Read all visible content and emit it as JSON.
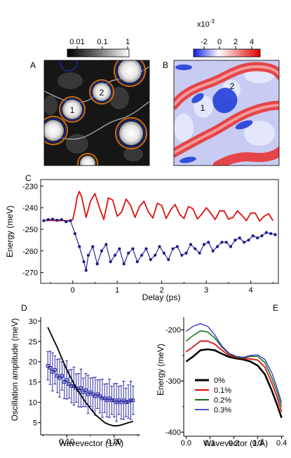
{
  "panels": {
    "A": {
      "letter": "A",
      "colorbar_ticks": [
        "0.01",
        "0.1",
        "1"
      ],
      "site_labels": [
        "1",
        "2"
      ]
    },
    "B": {
      "letter": "B",
      "colorbar_exponent": "x10",
      "colorbar_exponent_power": "-3",
      "colorbar_ticks": [
        "-2",
        "0",
        "2",
        "4"
      ],
      "site_labels": [
        "1",
        "2"
      ],
      "colors": {
        "negative": "#2030d0",
        "zero": "#ffffff",
        "positive": "#e01818"
      }
    },
    "C": {
      "letter": "C",
      "xlabel": "Delay (ps)",
      "ylabel": "Energy (meV)",
      "xticks": [
        "0",
        "1",
        "2",
        "3",
        "4"
      ],
      "yticks": [
        "-230",
        "-240",
        "-250",
        "-260",
        "-270"
      ]
    },
    "D": {
      "letter": "D",
      "xlabel": "Wavevector (1/Å)",
      "ylabel": "Oscillation amplitude (meV)",
      "xticks": [
        "0.10",
        "0.20"
      ],
      "yticks": [
        "30",
        "25",
        "20",
        "15",
        "10",
        "5"
      ]
    },
    "E": {
      "letter": "E",
      "xlabel": "Wavevector (1/Å)",
      "ylabel": "Energy (meV)",
      "xticks": [
        "0.0",
        "0.1",
        "0.2",
        "0.3",
        "0.4"
      ],
      "yticks": [
        "-200",
        "-300",
        "-400"
      ],
      "legend": [
        "0%",
        "0.1%",
        "0.2%",
        "0.3%"
      ]
    }
  },
  "chart_data": [
    {
      "panel": "C",
      "type": "line",
      "xlabel": "Delay (ps)",
      "ylabel": "Energy (meV)",
      "xlim": [
        -0.72,
        4.62
      ],
      "ylim": [
        -275,
        -227
      ],
      "series": [
        {
          "color": "#e01010",
          "x": [
            -0.6,
            -0.5,
            -0.4,
            -0.3,
            -0.2,
            -0.1,
            0.0,
            0.05,
            0.1,
            0.15,
            0.2,
            0.3,
            0.4,
            0.5,
            0.6,
            0.7,
            0.8,
            0.9,
            1.0,
            1.1,
            1.2,
            1.3,
            1.4,
            1.5,
            1.6,
            1.7,
            1.8,
            1.9,
            2.0,
            2.1,
            2.2,
            2.3,
            2.4,
            2.5,
            2.6,
            2.7,
            2.8,
            2.9,
            3.0,
            3.1,
            3.2,
            3.3,
            3.4,
            3.5,
            3.6,
            3.7,
            3.8,
            3.9,
            4.0,
            4.1,
            4.2,
            4.3,
            4.4,
            4.5
          ],
          "y": [
            -246,
            -245.8,
            -246,
            -245.9,
            -246,
            -246,
            -245.6,
            -241,
            -235,
            -232.5,
            -235,
            -244.5,
            -237,
            -233.5,
            -240,
            -245.5,
            -235.5,
            -236.5,
            -244,
            -242,
            -236,
            -239,
            -244.5,
            -239.5,
            -237,
            -242,
            -244.8,
            -238,
            -239,
            -245,
            -241,
            -238.5,
            -243,
            -245,
            -239.5,
            -240.5,
            -245.2,
            -243,
            -240,
            -242.5,
            -245.5,
            -241.5,
            -241.5,
            -245.3,
            -244.5,
            -241.5,
            -243.5,
            -246,
            -242.5,
            -242.5,
            -246.2,
            -244,
            -242.8,
            -246
          ]
        },
        {
          "color": "#1a1a8a",
          "x": [
            -0.65,
            -0.55,
            -0.45,
            -0.35,
            -0.25,
            -0.15,
            -0.05,
            0.05,
            0.15,
            0.25,
            0.3,
            0.35,
            0.45,
            0.55,
            0.65,
            0.75,
            0.85,
            0.95,
            1.05,
            1.15,
            1.25,
            1.35,
            1.45,
            1.55,
            1.65,
            1.75,
            1.85,
            1.95,
            2.05,
            2.15,
            2.25,
            2.35,
            2.45,
            2.55,
            2.65,
            2.75,
            2.85,
            2.95,
            3.05,
            3.15,
            3.25,
            3.35,
            3.45,
            3.55,
            3.65,
            3.75,
            3.85,
            3.95,
            4.05,
            4.15,
            4.25,
            4.35,
            4.45,
            4.55
          ],
          "y": [
            -246,
            -245.5,
            -245.3,
            -245.8,
            -245.5,
            -246.5,
            -246,
            -252,
            -258,
            -265,
            -269,
            -262,
            -258,
            -266,
            -260,
            -257,
            -265,
            -262,
            -259,
            -266,
            -261,
            -259,
            -265,
            -262,
            -259,
            -264,
            -262,
            -258,
            -261,
            -264,
            -259,
            -258,
            -262,
            -261,
            -257,
            -259,
            -261,
            -257,
            -256,
            -260,
            -258,
            -256,
            -256,
            -258,
            -255,
            -254,
            -256,
            -255,
            -253,
            -254,
            -253,
            -251.5,
            -252,
            -252.5
          ]
        }
      ]
    },
    {
      "panel": "D",
      "type": "scatter",
      "xlabel": "Wavevector (1/Å)",
      "ylabel": "Oscillation amplitude (meV)",
      "xlim": [
        0.045,
        0.255
      ],
      "ylim": [
        2,
        31
      ],
      "series": [
        {
          "color": "#000000",
          "style": "line",
          "x": [
            0.06,
            0.08,
            0.1,
            0.12,
            0.14,
            0.16,
            0.18,
            0.19,
            0.2,
            0.21,
            0.22,
            0.23,
            0.24
          ],
          "y": [
            28.5,
            23.5,
            18,
            13.5,
            10,
            7,
            5,
            4.5,
            4.2,
            4.3,
            4.6,
            5.0,
            5.3
          ]
        },
        {
          "color": "#1a1a9a",
          "style": "points",
          "x": [
            0.06,
            0.065,
            0.07,
            0.075,
            0.08,
            0.085,
            0.09,
            0.095,
            0.1,
            0.105,
            0.11,
            0.115,
            0.12,
            0.125,
            0.13,
            0.135,
            0.14,
            0.145,
            0.15,
            0.155,
            0.16,
            0.165,
            0.17,
            0.175,
            0.18,
            0.185,
            0.19,
            0.195,
            0.2,
            0.205,
            0.21,
            0.215,
            0.22,
            0.225,
            0.23,
            0.235,
            0.24
          ],
          "y": [
            19,
            18.5,
            17.5,
            18,
            16.5,
            16,
            16.5,
            15,
            15.5,
            14.5,
            14,
            14,
            13.5,
            13,
            13.5,
            12.5,
            13,
            12,
            12.5,
            12,
            11.5,
            12,
            11.5,
            11,
            11,
            10.5,
            11,
            10.5,
            10.5,
            10,
            10.5,
            10,
            10.5,
            10,
            10.2,
            10.5,
            10.5
          ],
          "errorbar": 3.5
        }
      ]
    },
    {
      "panel": "E",
      "type": "line",
      "xlabel": "Wavevector (1/Å)",
      "ylabel": "Energy (meV)",
      "xlim": [
        -0.01,
        0.41
      ],
      "ylim": [
        -408,
        -175
      ],
      "legend": "inside bottom-left",
      "series": [
        {
          "name": "0%",
          "color": "#000000",
          "x": [
            0,
            0.03,
            0.06,
            0.09,
            0.12,
            0.15,
            0.18,
            0.21,
            0.24,
            0.27,
            0.3,
            0.33,
            0.36,
            0.38,
            0.4
          ],
          "y": [
            -262,
            -252,
            -240,
            -238,
            -240,
            -247,
            -253,
            -256,
            -258,
            -262,
            -270,
            -287,
            -320,
            -345,
            -372
          ]
        },
        {
          "name": "0.1%",
          "color": "#e01010",
          "x": [
            0,
            0.03,
            0.06,
            0.09,
            0.12,
            0.15,
            0.18,
            0.21,
            0.24,
            0.27,
            0.3,
            0.33,
            0.36,
            0.38,
            0.4
          ],
          "y": [
            -243,
            -233,
            -222,
            -222,
            -228,
            -240,
            -250,
            -254,
            -256,
            -257,
            -259,
            -273,
            -305,
            -330,
            -360
          ]
        },
        {
          "name": "0.2%",
          "color": "#107010",
          "x": [
            0,
            0.03,
            0.06,
            0.09,
            0.12,
            0.15,
            0.18,
            0.21,
            0.24,
            0.27,
            0.3,
            0.33,
            0.36,
            0.38,
            0.4
          ],
          "y": [
            -222,
            -211,
            -202,
            -204,
            -216,
            -234,
            -247,
            -253,
            -255,
            -252,
            -252,
            -264,
            -295,
            -320,
            -350
          ]
        },
        {
          "name": "0.3%",
          "color": "#1a1ac0",
          "x": [
            0,
            0.03,
            0.06,
            0.09,
            0.12,
            0.15,
            0.18,
            0.21,
            0.24,
            0.27,
            0.3,
            0.33,
            0.36,
            0.38,
            0.4
          ],
          "y": [
            -203,
            -193,
            -188,
            -193,
            -210,
            -232,
            -246,
            -252,
            -254,
            -250,
            -249,
            -258,
            -285,
            -312,
            -342
          ]
        }
      ]
    }
  ]
}
